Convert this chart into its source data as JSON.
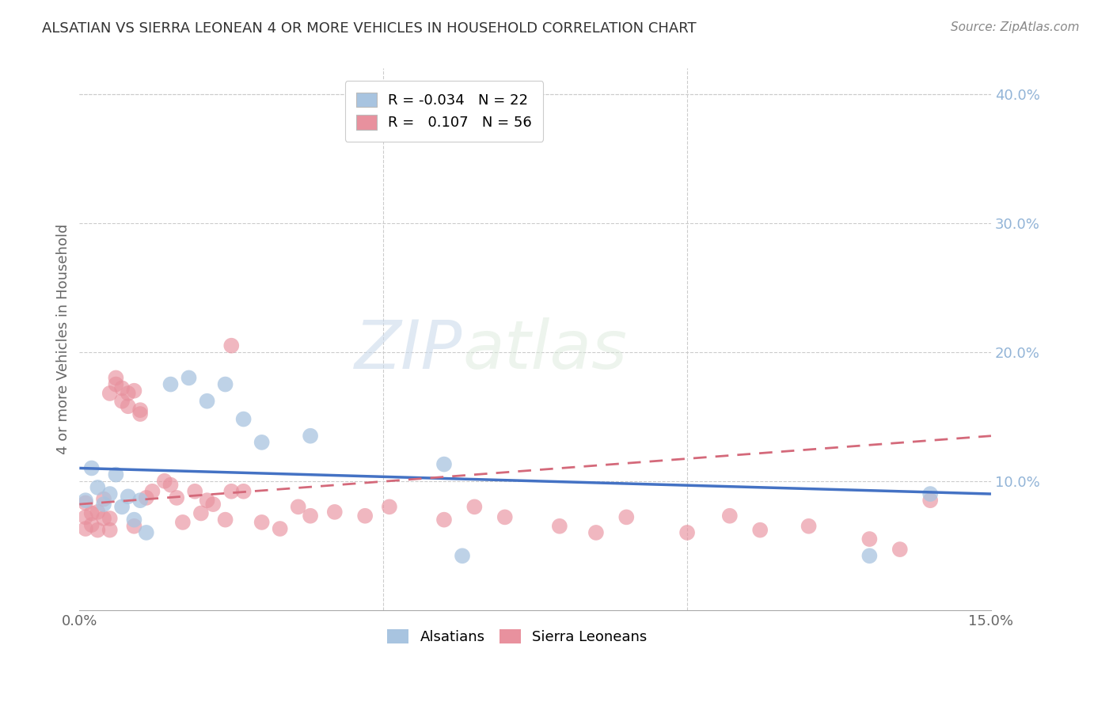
{
  "title": "ALSATIAN VS SIERRA LEONEAN 4 OR MORE VEHICLES IN HOUSEHOLD CORRELATION CHART",
  "source": "Source: ZipAtlas.com",
  "ylabel": "4 or more Vehicles in Household",
  "xlim": [
    0.0,
    0.15
  ],
  "ylim": [
    0.0,
    0.42
  ],
  "legend_R_alsatian": "-0.034",
  "legend_N_alsatian": "22",
  "legend_R_sierra": "0.107",
  "legend_N_sierra": "56",
  "blue_color": "#a8c4e0",
  "pink_color": "#e8919e",
  "blue_line_color": "#4472c4",
  "pink_line_color": "#d4697a",
  "right_axis_color": "#92b4d7",
  "alsatian_x": [
    0.001,
    0.002,
    0.003,
    0.004,
    0.005,
    0.006,
    0.007,
    0.008,
    0.009,
    0.01,
    0.011,
    0.015,
    0.018,
    0.021,
    0.024,
    0.027,
    0.03,
    0.038,
    0.06,
    0.063,
    0.13,
    0.14
  ],
  "alsatian_y": [
    0.085,
    0.11,
    0.095,
    0.082,
    0.09,
    0.105,
    0.08,
    0.088,
    0.07,
    0.085,
    0.06,
    0.175,
    0.18,
    0.162,
    0.175,
    0.148,
    0.13,
    0.135,
    0.113,
    0.042,
    0.042,
    0.09
  ],
  "sierra_x": [
    0.001,
    0.001,
    0.001,
    0.002,
    0.002,
    0.003,
    0.003,
    0.004,
    0.004,
    0.005,
    0.005,
    0.005,
    0.006,
    0.006,
    0.007,
    0.007,
    0.008,
    0.008,
    0.009,
    0.009,
    0.01,
    0.01,
    0.011,
    0.012,
    0.014,
    0.015,
    0.016,
    0.017,
    0.019,
    0.02,
    0.021,
    0.022,
    0.024,
    0.025,
    0.025,
    0.027,
    0.03,
    0.033,
    0.036,
    0.038,
    0.042,
    0.047,
    0.051,
    0.06,
    0.065,
    0.07,
    0.079,
    0.085,
    0.09,
    0.1,
    0.107,
    0.112,
    0.12,
    0.13,
    0.135,
    0.14
  ],
  "sierra_y": [
    0.063,
    0.072,
    0.083,
    0.066,
    0.075,
    0.062,
    0.076,
    0.071,
    0.086,
    0.062,
    0.071,
    0.168,
    0.175,
    0.18,
    0.172,
    0.162,
    0.158,
    0.168,
    0.065,
    0.17,
    0.152,
    0.155,
    0.087,
    0.092,
    0.1,
    0.097,
    0.087,
    0.068,
    0.092,
    0.075,
    0.085,
    0.082,
    0.07,
    0.092,
    0.205,
    0.092,
    0.068,
    0.063,
    0.08,
    0.073,
    0.076,
    0.073,
    0.08,
    0.07,
    0.08,
    0.072,
    0.065,
    0.06,
    0.072,
    0.06,
    0.073,
    0.062,
    0.065,
    0.055,
    0.047,
    0.085
  ],
  "blue_trend_x": [
    0.0,
    0.15
  ],
  "blue_trend_y": [
    0.11,
    0.09
  ],
  "pink_trend_x": [
    0.0,
    0.15
  ],
  "pink_trend_y": [
    0.082,
    0.135
  ]
}
